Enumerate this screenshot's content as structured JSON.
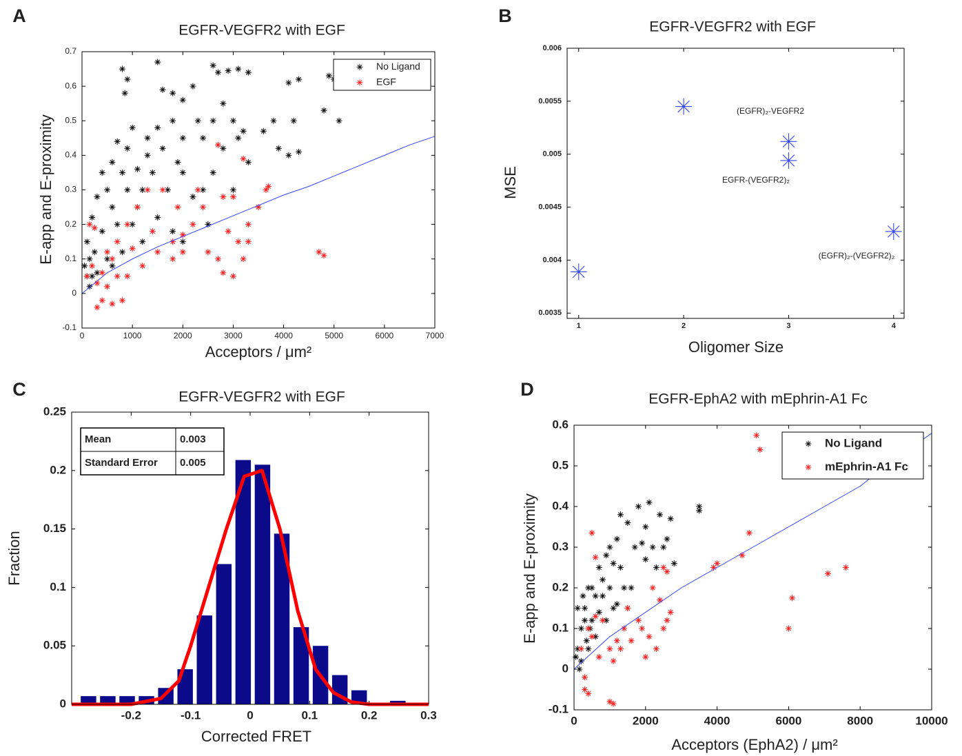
{
  "chart_data": [
    {
      "type": "scatter",
      "panel_label": "A",
      "title": "EGFR-VEGFR2 with EGF",
      "xlabel": "Acceptors / μm²",
      "ylabel": "E-app and E-proximity",
      "xlim": [
        0,
        7000
      ],
      "ylim": [
        -0.1,
        0.7
      ],
      "xticks": [
        0,
        1000,
        2000,
        3000,
        4000,
        5000,
        6000,
        7000
      ],
      "yticks": [
        -0.1,
        0,
        0.1,
        0.2,
        0.3,
        0.4,
        0.5,
        0.6,
        0.7
      ],
      "legend": "upper right",
      "series": [
        {
          "name": "No Ligand",
          "color": "#111111",
          "x": [
            800,
            850,
            900,
            1500,
            1600,
            1800,
            2000,
            2200,
            2600,
            2700,
            2900,
            3100,
            3300,
            4100,
            4300,
            4900,
            5000,
            4800,
            5100,
            4200,
            3900,
            4100,
            4300,
            3600,
            3800,
            3200,
            3000,
            2800,
            2600,
            2400,
            2000,
            1800,
            1500,
            1300,
            1000,
            900,
            700,
            600,
            800,
            500,
            400,
            300,
            200,
            100,
            150,
            50,
            100,
            250,
            400,
            600,
            700,
            900,
            1100,
            1200,
            1400,
            1600,
            1700,
            2000,
            2200,
            2400,
            2600,
            2800,
            3000,
            3100,
            3300,
            1000,
            1200,
            1500,
            1800,
            2000,
            2500,
            300,
            500,
            800,
            1100,
            1300,
            2300,
            1900,
            200,
            150,
            600
          ],
          "values": [
            0.65,
            0.58,
            0.62,
            0.67,
            0.59,
            0.58,
            0.56,
            0.6,
            0.66,
            0.64,
            0.645,
            0.65,
            0.64,
            0.61,
            0.62,
            0.63,
            0.62,
            0.53,
            0.5,
            0.5,
            0.42,
            0.4,
            0.41,
            0.47,
            0.5,
            0.47,
            0.5,
            0.55,
            0.5,
            0.45,
            0.45,
            0.5,
            0.48,
            0.45,
            0.48,
            0.42,
            0.44,
            0.38,
            0.35,
            0.3,
            0.35,
            0.28,
            0.22,
            0.15,
            0.1,
            0.08,
            0.05,
            0.12,
            0.18,
            0.25,
            0.2,
            0.3,
            0.36,
            0.3,
            0.35,
            0.42,
            0.3,
            0.35,
            0.28,
            0.3,
            0.35,
            0.42,
            0.3,
            0.45,
            0.38,
            0.2,
            0.15,
            0.22,
            0.18,
            0.15,
            0.2,
            0.06,
            0.1,
            0.12,
            0.25,
            0.4,
            0.5,
            0.38,
            0.05,
            0.02,
            0.08
          ]
        },
        {
          "name": "EGF",
          "color": "#ff2020",
          "x": [
            2700,
            3200,
            3700,
            3650,
            3500,
            4700,
            4800,
            3000,
            2800,
            2700,
            2800,
            3000,
            2900,
            3100,
            3300,
            3300,
            3200,
            2400,
            2200,
            2000,
            1800,
            1600,
            1300,
            1100,
            900,
            700,
            600,
            500,
            400,
            300,
            200,
            100,
            300,
            400,
            500,
            700,
            900,
            1200,
            1500,
            1800,
            2000,
            2500,
            1000,
            1400,
            1900,
            2300,
            800,
            600,
            150,
            250
          ],
          "values": [
            0.43,
            0.39,
            0.31,
            0.3,
            0.25,
            0.12,
            0.11,
            0.28,
            0.28,
            0.1,
            0.06,
            0.05,
            0.18,
            0.15,
            0.2,
            0.15,
            0.1,
            0.25,
            0.2,
            0.17,
            0.15,
            0.3,
            0.3,
            0.25,
            0.2,
            0.15,
            0.1,
            0.12,
            0.06,
            0.03,
            0.08,
            0.05,
            -0.04,
            -0.02,
            0.02,
            0.05,
            0.05,
            0.08,
            0.12,
            0.1,
            0.12,
            0.12,
            0.13,
            0.18,
            0.25,
            0.3,
            -0.02,
            -0.03,
            0.2,
            0.19
          ]
        }
      ],
      "fit": {
        "color": "#3344ff",
        "x": [
          0,
          500,
          1000,
          1500,
          2000,
          2500,
          3000,
          3500,
          4000,
          4500,
          5000,
          5500,
          6000,
          6500,
          7000
        ],
        "values": [
          0,
          0.06,
          0.1,
          0.135,
          0.165,
          0.195,
          0.225,
          0.255,
          0.285,
          0.31,
          0.34,
          0.37,
          0.4,
          0.43,
          0.455
        ]
      }
    },
    {
      "type": "scatter",
      "panel_label": "B",
      "title": "EGFR-VEGFR2 with EGF",
      "xlabel": "Oligomer Size",
      "ylabel": "MSE",
      "xlim": [
        0.89,
        4.1
      ],
      "ylim": [
        0.00345,
        0.006
      ],
      "xticks": [
        1,
        2,
        3,
        4
      ],
      "yticks": [
        0.0035,
        0.004,
        0.0045,
        0.005,
        0.0055,
        0.006
      ],
      "series": [
        {
          "color": "#3344ff",
          "x": [
            1,
            2,
            3,
            3,
            4
          ],
          "values": [
            0.00389,
            0.00545,
            0.00512,
            0.00494,
            0.00427
          ]
        }
      ],
      "annotations": [
        "(EGFR)₂-VEGFR2",
        "EGFR-(VEGFR2)₂",
        "(EGFR)₂-(VEGFR2)₂"
      ]
    },
    {
      "type": "histogram",
      "panel_label": "C",
      "title": "EGFR-VEGFR2 with EGF",
      "xlabel": "Corrected FRET",
      "ylabel": "Fraction",
      "xlim": [
        -0.3,
        0.3
      ],
      "ylim": [
        0,
        0.25
      ],
      "xticks": [
        -0.2,
        -0.1,
        0,
        0.1,
        0.2,
        0.3
      ],
      "yticks": [
        0,
        0.05,
        0.1,
        0.15,
        0.2,
        0.25
      ],
      "color": "#0a0a8a",
      "bins": [
        -0.288,
        -0.2555,
        -0.223,
        -0.1905,
        -0.158,
        -0.1255,
        -0.093,
        -0.0605,
        -0.028,
        0.0045,
        0.037,
        0.0695,
        0.102,
        0.1345,
        0.167,
        0.1995,
        0.232,
        0.2645
      ],
      "values": [
        0.007,
        0.007,
        0.007,
        0.007,
        0.014,
        0.03,
        0.076,
        0.12,
        0.209,
        0.205,
        0.146,
        0.066,
        0.05,
        0.025,
        0.012,
        0,
        0.003
      ],
      "curve": {
        "color": "#ff0000",
        "x": [
          -0.3,
          -0.2,
          -0.15,
          -0.12,
          -0.1,
          -0.07,
          -0.04,
          -0.01,
          0.02,
          0.05,
          0.08,
          0.11,
          0.14,
          0.17,
          0.2,
          0.3
        ],
        "values": [
          0,
          0,
          0.005,
          0.02,
          0.05,
          0.1,
          0.15,
          0.195,
          0.2,
          0.15,
          0.08,
          0.03,
          0.01,
          0.002,
          0,
          0
        ]
      },
      "table": [
        [
          "Mean",
          "0.003"
        ],
        [
          "Standard Error",
          "0.005"
        ]
      ]
    },
    {
      "type": "scatter",
      "panel_label": "D",
      "title": "EGFR-EphA2 with mEphrin-A1 Fc",
      "xlabel": "Acceptors (EphA2) / μm²",
      "ylabel": "E-app and E-proximity",
      "xlim": [
        0,
        10000
      ],
      "ylim": [
        -0.1,
        0.6
      ],
      "xticks": [
        0,
        2000,
        4000,
        6000,
        8000,
        10000
      ],
      "yticks": [
        -0.1,
        0,
        0.1,
        0.2,
        0.3,
        0.4,
        0.5,
        0.6
      ],
      "legend": "upper right",
      "series": [
        {
          "name": "No Ligand",
          "color": "#111111",
          "x": [
            100,
            200,
            300,
            400,
            500,
            600,
            700,
            800,
            900,
            1000,
            1100,
            1200,
            1300,
            1500,
            1700,
            1800,
            2000,
            2100,
            2200,
            2400,
            2500,
            2700,
            2800,
            3500,
            3500,
            1400,
            1600,
            1900,
            2300,
            1100,
            900,
            600,
            400,
            200,
            150,
            300,
            500,
            700,
            800,
            1000,
            1200,
            1300,
            1500,
            2000,
            2600,
            100,
            250,
            350,
            50,
            450
          ],
          "values": [
            0.05,
            0.1,
            0.15,
            0.2,
            0.12,
            0.18,
            0.25,
            0.22,
            0.28,
            0.3,
            0.26,
            0.32,
            0.38,
            0.36,
            0.3,
            0.4,
            0.35,
            0.41,
            0.3,
            0.38,
            0.3,
            0.37,
            0.26,
            0.39,
            0.4,
            0.2,
            0.2,
            0.31,
            0.25,
            0.15,
            0.12,
            0.08,
            0.05,
            0.02,
            0,
            0.12,
            0.2,
            0.14,
            0.18,
            0.2,
            0.16,
            0.25,
            0.15,
            0.27,
            0.32,
            0.15,
            0.18,
            0.07,
            0.03,
            0.1
          ]
        },
        {
          "name": "mEphrin-A1 Fc",
          "color": "#ff2020",
          "x": [
            5100,
            5200,
            4900,
            4700,
            4000,
            3900,
            6100,
            6000,
            7100,
            7600,
            500,
            600,
            1100,
            1000,
            300,
            400,
            300,
            200,
            400,
            500,
            600,
            800,
            1000,
            1100,
            1200,
            1400,
            1600,
            1900,
            2100,
            2300,
            2500,
            2600,
            2700,
            2400,
            2200,
            2000,
            1800,
            700,
            1300,
            1500,
            2600,
            2500
          ],
          "values": [
            0.575,
            0.54,
            0.335,
            0.28,
            0.26,
            0.25,
            0.175,
            0.1,
            0.235,
            0.25,
            0.335,
            0.275,
            -0.085,
            -0.08,
            -0.05,
            -0.06,
            -0.02,
            0.05,
            0.1,
            0.08,
            0.13,
            0.12,
            0.05,
            0.02,
            0.07,
            0.1,
            0.07,
            0.1,
            0.08,
            0.05,
            0.1,
            0.12,
            0.14,
            0.17,
            0.2,
            0.03,
            0.12,
            0.03,
            0.05,
            0.15,
            0.24,
            0.25
          ]
        }
      ],
      "fit": {
        "color": "#3344ff",
        "x": [
          0,
          1000,
          2000,
          3000,
          4000,
          5000,
          6000,
          7000,
          8000,
          9000,
          10000
        ],
        "values": [
          0,
          0.08,
          0.14,
          0.2,
          0.25,
          0.3,
          0.35,
          0.4,
          0.45,
          0.52,
          0.58
        ]
      }
    }
  ]
}
